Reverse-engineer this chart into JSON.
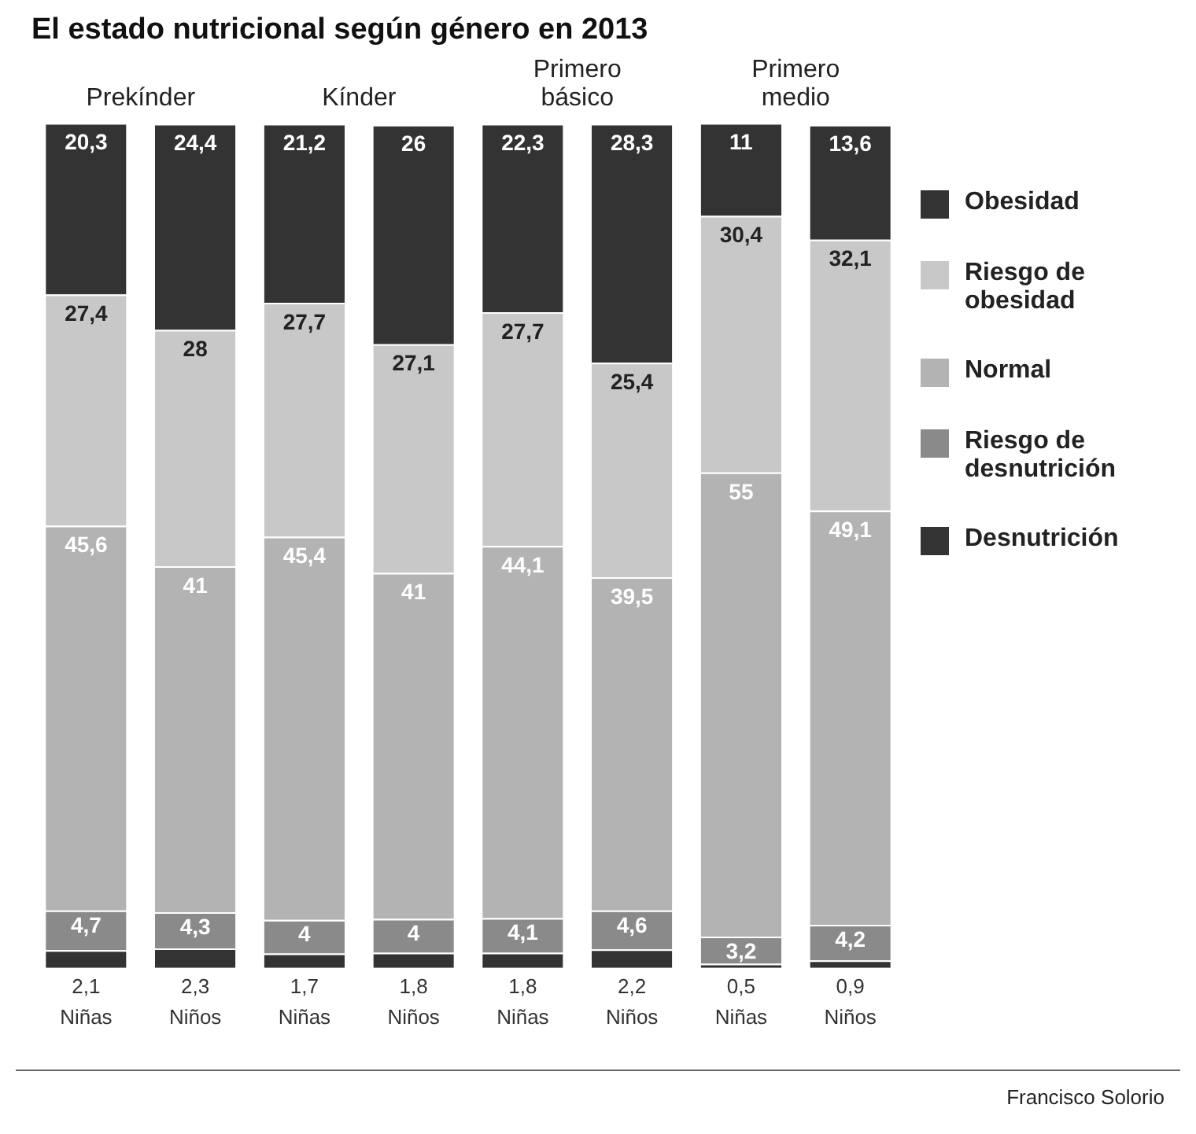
{
  "chart_data": {
    "type": "bar",
    "stacked": true,
    "title": "El estado nutricional según género en 2013",
    "categories": [
      "Niñas",
      "Niños",
      "Niñas",
      "Niños",
      "Niñas",
      "Niños",
      "Niñas",
      "Niños"
    ],
    "series": [
      {
        "name": "Desnutrición",
        "color": "#333333",
        "values": [
          2.1,
          2.3,
          1.7,
          1.8,
          1.8,
          2.2,
          0.5,
          0.9
        ],
        "value_labels": [
          "2,1",
          "2,3",
          "1,7",
          "1,8",
          "1,8",
          "2,2",
          "0,5",
          "0,9"
        ]
      },
      {
        "name": "Riesgo de desnutrición",
        "color": "#8a8a8a",
        "values": [
          4.7,
          4.3,
          4,
          4,
          4.1,
          4.6,
          3.2,
          4.2
        ],
        "value_labels": [
          "4,7",
          "4,3",
          "4",
          "4",
          "4,1",
          "4,6",
          "3,2",
          "4,2"
        ]
      },
      {
        "name": "Normal",
        "color": "#b3b3b3",
        "values": [
          45.6,
          41,
          45.4,
          41,
          44.1,
          39.5,
          55,
          49.1
        ],
        "value_labels": [
          "45,6",
          "41",
          "45,4",
          "41",
          "44,1",
          "39,5",
          "55",
          "49,1"
        ]
      },
      {
        "name": "Riesgo de obesidad",
        "color": "#c8c8c8",
        "values": [
          27.4,
          28,
          27.7,
          27.1,
          27.7,
          25.4,
          30.4,
          32.1
        ],
        "value_labels": [
          "27,4",
          "28",
          "27,7",
          "27,1",
          "27,7",
          "25,4",
          "30,4",
          "32,1"
        ]
      },
      {
        "name": "Obesidad",
        "color": "#333333",
        "values": [
          20.3,
          24.4,
          21.2,
          26,
          22.3,
          28.3,
          11,
          13.6
        ],
        "value_labels": [
          "20,3",
          "24,4",
          "21,2",
          "26",
          "22,3",
          "28,3",
          "11",
          "13,6"
        ]
      }
    ],
    "ylim": [
      0,
      100
    ],
    "tick_labels": "x",
    "grid": false,
    "legend": "right",
    "annotations": [
      "Prekínder",
      "Kínder",
      "Primero básico",
      "Primero medio",
      "Francisco Solorio"
    ]
  }
}
